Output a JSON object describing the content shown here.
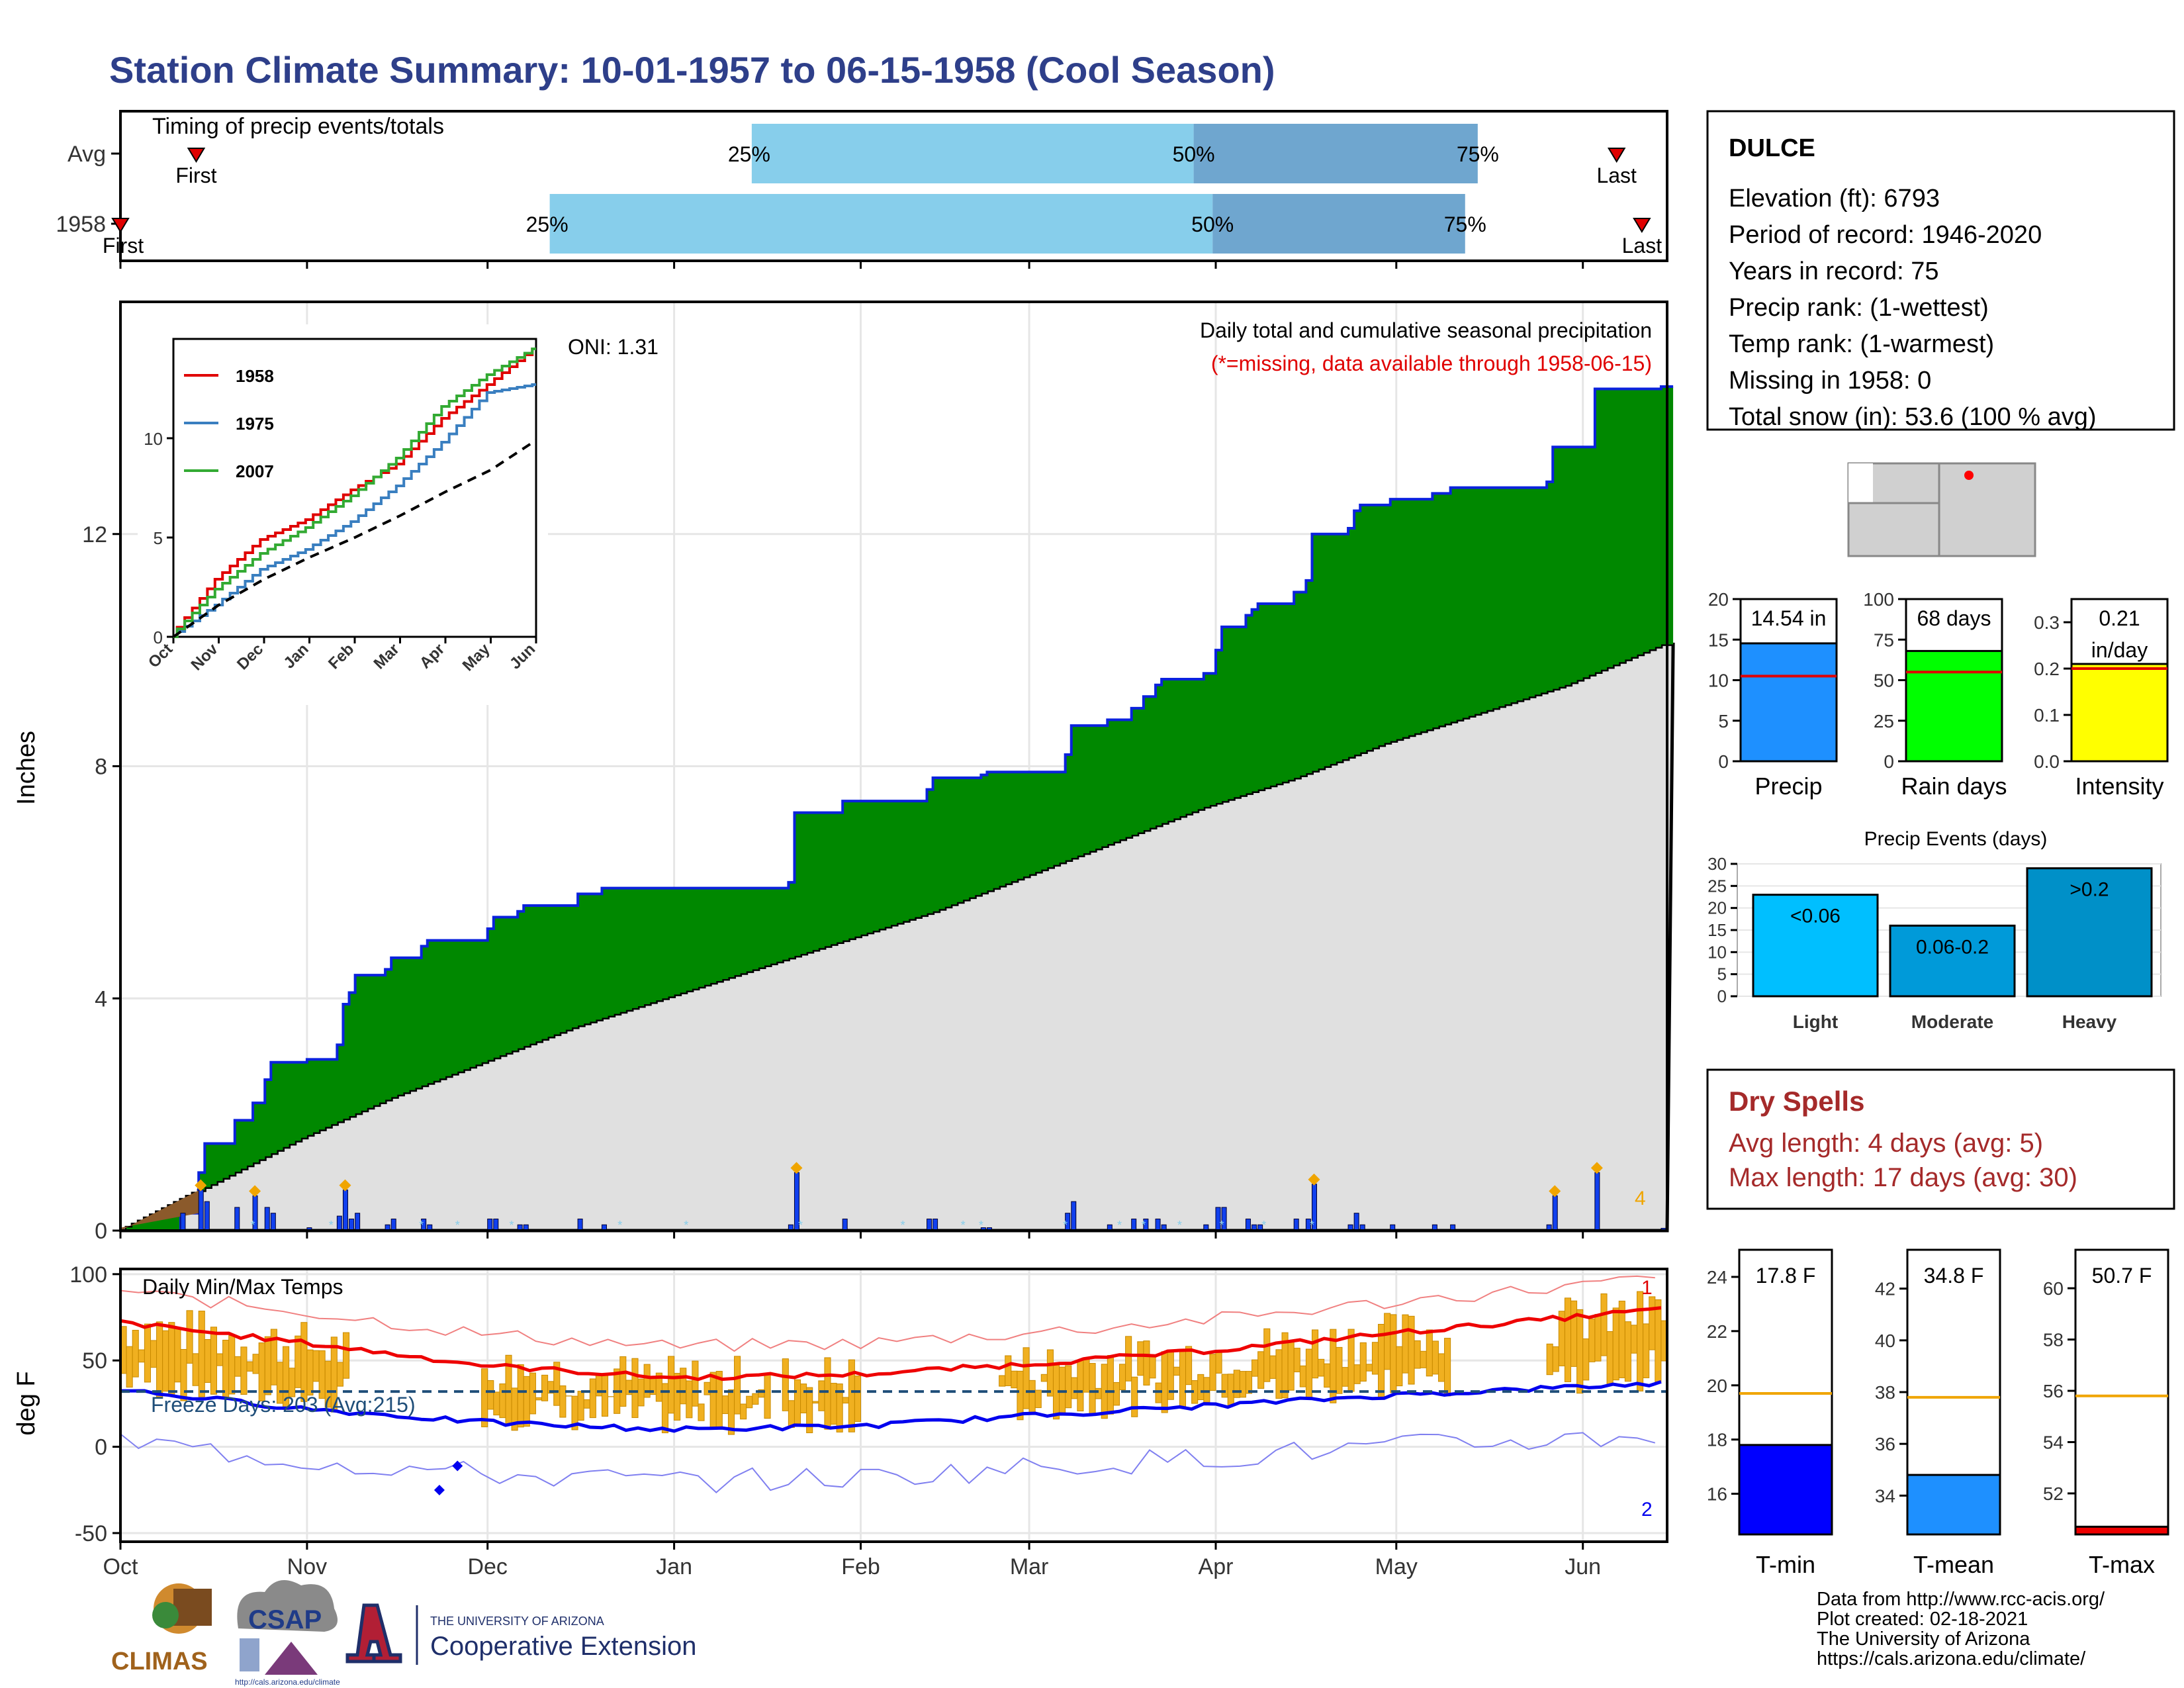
{
  "title": "Station Climate Summary: 10-01-1957 to 06-15-1958 (Cool Season)",
  "colors": {
    "title": "#2e3f8a",
    "green_fill": "#008800",
    "avg_fill": "#e0e0e0",
    "blue_line": "#0a22dd",
    "bar_blue": "#1140ee",
    "snow": "#87ceeb",
    "q_light": "#87ceeb",
    "q_dark": "#6fa6cf",
    "red": "#e00000",
    "orange": "#f0a500",
    "dry": "#a52a2a"
  },
  "timing": {
    "title": "Timing of precip events/totals",
    "rows": [
      {
        "label": "Avg",
        "first_label": "First",
        "last_label": "Last",
        "q25": "25%",
        "q50": "50%",
        "q75": "75%",
        "first_day": 12,
        "last_day": 237,
        "q25_day": 100,
        "q50_day": 170,
        "q75_day": 215
      },
      {
        "label": "1958",
        "first_label": "First",
        "last_label": "Last",
        "q25": "25%",
        "q50": "50%",
        "q75": "75%",
        "first_day": 0,
        "last_day": 241,
        "q25_day": 68,
        "q50_day": 173,
        "q75_day": 213
      }
    ]
  },
  "precip_panel": {
    "ylabel": "Inches",
    "yticks": [
      "0",
      "4",
      "8",
      "12"
    ],
    "oni": "ONI: 1.31",
    "caption": "Daily total and cumulative seasonal precipitation",
    "missing_note": "(*=missing, data available through 1958-06-15)",
    "extreme_count": "4"
  },
  "inset": {
    "yticks": [
      "0",
      "5",
      "10"
    ],
    "xticks": [
      "Oct",
      "Nov",
      "Dec",
      "Jan",
      "Feb",
      "Mar",
      "Apr",
      "May",
      "Jun"
    ],
    "legend": [
      {
        "name": "1958",
        "color": "#e00000"
      },
      {
        "name": "1975",
        "color": "#3a7fc0"
      },
      {
        "name": "2007",
        "color": "#33aa33"
      }
    ]
  },
  "temp_panel": {
    "ylabel": "deg F",
    "title": "Daily Min/Max Temps",
    "freeze_label": "Freeze Days: 203 (Avg:215)",
    "yticks": [
      "100",
      "50",
      "0",
      "-50"
    ],
    "record_high_count": "1",
    "record_low_count": "2"
  },
  "x_months": [
    "Oct",
    "Nov",
    "Dec",
    "Jan",
    "Feb",
    "Mar",
    "Apr",
    "May",
    "Jun"
  ],
  "station": {
    "name": "DULCE",
    "lines": [
      "Elevation (ft): 6793",
      "Period of record: 1946-2020",
      "Years in record: 75",
      "Precip rank:  (1-wettest)",
      "Temp rank:  (1-warmest)",
      "Missing in 1958: 0",
      "Total snow (in): 53.6 (100 % avg)"
    ]
  },
  "mini_bars": [
    {
      "label": "Precip",
      "value_label": "14.54 in",
      "value": 14.54,
      "avg": 10.5,
      "max": 20,
      "ticks": [
        "0",
        "5",
        "10",
        "15",
        "20"
      ],
      "color": "#1e90ff"
    },
    {
      "label": "Rain days",
      "value_label": "68 days",
      "value": 68,
      "avg": 55,
      "max": 100,
      "ticks": [
        "0",
        "25",
        "50",
        "75",
        "100"
      ],
      "color": "#00ff00"
    },
    {
      "label": "Intensity",
      "value_label": "0.21",
      "value_label2": "in/day",
      "value": 0.21,
      "avg": 0.2,
      "max": 0.35,
      "ticks": [
        "0.0",
        "0.1",
        "0.2",
        "0.3"
      ],
      "color": "#ffff00"
    }
  ],
  "events": {
    "title": "Precip Events (days)",
    "yticks": [
      "0",
      "5",
      "10",
      "15",
      "20",
      "25",
      "30"
    ],
    "bars": [
      {
        "label": "Light",
        "range": "<0.06",
        "value": 23,
        "color": "#00bfff"
      },
      {
        "label": "Moderate",
        "range": "0.06-0.2",
        "value": 16,
        "color": "#009ad9"
      },
      {
        "label": "Heavy",
        "range": ">0.2",
        "value": 29,
        "color": "#0090c8"
      }
    ]
  },
  "dry_spells": {
    "title": "Dry Spells",
    "avg": "Avg length: 4 days (avg: 5)",
    "max": "Max length: 17 days (avg: 30)"
  },
  "temp_bars": [
    {
      "label": "T-min",
      "value_label": "17.8 F",
      "value": 17.8,
      "avg": 19.7,
      "min": 14.5,
      "max": 25,
      "ticks": [
        "16",
        "18",
        "20",
        "22",
        "24"
      ],
      "color": "#0000ff"
    },
    {
      "label": "T-mean",
      "value_label": "34.8 F",
      "value": 34.8,
      "avg": 37.8,
      "min": 32.5,
      "max": 43.5,
      "ticks": [
        "34",
        "36",
        "38",
        "40",
        "42"
      ],
      "color": "#1e90ff"
    },
    {
      "label": "T-max",
      "value_label": "50.7 F",
      "value": 50.7,
      "avg": 55.8,
      "min": 50.4,
      "max": 61.5,
      "ticks": [
        "52",
        "54",
        "56",
        "58",
        "60"
      ],
      "color": "#ee0000"
    }
  ],
  "footer": [
    "Data from http://www.rcc-acis.org/",
    "Plot created: 02-18-2021",
    "The University of Arizona",
    "https://cals.arizona.edu/climate/"
  ],
  "logos": {
    "climas": "CLIMAS",
    "csap": "CSAP",
    "csap_url": "http://cals.arizona.edu/climate",
    "ua_line1": "THE UNIVERSITY OF ARIZONA",
    "ua_line2": "Cooperative Extension"
  },
  "chart_data": {
    "type": "area",
    "title": "Daily total and cumulative seasonal precipitation",
    "ylabel": "Inches",
    "xlabel": "",
    "ylim": [
      0,
      16
    ],
    "categories": [
      "Oct",
      "Nov",
      "Dec",
      "Jan",
      "Feb",
      "Mar",
      "Apr",
      "May",
      "Jun"
    ],
    "series": [
      {
        "name": "1958",
        "points": [
          [
            0,
            0.0
          ],
          [
            10,
            0.3
          ],
          [
            13,
            1.0
          ],
          [
            14,
            1.5
          ],
          [
            20,
            1.6
          ],
          [
            19,
            1.9
          ],
          [
            22,
            2.2
          ],
          [
            24,
            2.6
          ],
          [
            25,
            2.9
          ],
          [
            31,
            2.95
          ],
          [
            36,
            3.2
          ],
          [
            37,
            3.9
          ],
          [
            38,
            4.1
          ],
          [
            39,
            4.4
          ],
          [
            44,
            4.5
          ],
          [
            45,
            4.7
          ],
          [
            50,
            4.9
          ],
          [
            51,
            5.0
          ],
          [
            58,
            5.0
          ],
          [
            61,
            5.2
          ],
          [
            62,
            5.4
          ],
          [
            66,
            5.5
          ],
          [
            67,
            5.6
          ],
          [
            76,
            5.8
          ],
          [
            80,
            5.9
          ],
          [
            107,
            5.9
          ],
          [
            111,
            6.0
          ],
          [
            112,
            7.2
          ],
          [
            120,
            7.4
          ],
          [
            134,
            7.6
          ],
          [
            135,
            7.8
          ],
          [
            143,
            7.85
          ],
          [
            144,
            7.9
          ],
          [
            157,
            8.2
          ],
          [
            158,
            8.7
          ],
          [
            164,
            8.8
          ],
          [
            168,
            9.0
          ],
          [
            170,
            9.2
          ],
          [
            172,
            9.4
          ],
          [
            173,
            9.5
          ],
          [
            180,
            9.6
          ],
          [
            182,
            10.0
          ],
          [
            183,
            10.4
          ],
          [
            187,
            10.6
          ],
          [
            188,
            10.7
          ],
          [
            189,
            10.8
          ],
          [
            195,
            11.0
          ],
          [
            197,
            11.2
          ],
          [
            198,
            12.0
          ],
          [
            204,
            12.1
          ],
          [
            205,
            12.4
          ],
          [
            206,
            12.5
          ],
          [
            211,
            12.6
          ],
          [
            218,
            12.7
          ],
          [
            221,
            12.8
          ],
          [
            237,
            12.9
          ],
          [
            238,
            13.5
          ],
          [
            245,
            14.5
          ],
          [
            256,
            14.54
          ]
        ]
      },
      {
        "name": "avg",
        "points": [
          [
            0,
            0
          ],
          [
            15,
            0.8
          ],
          [
            30,
            1.6
          ],
          [
            45,
            2.3
          ],
          [
            60,
            2.9
          ],
          [
            75,
            3.5
          ],
          [
            90,
            4.0
          ],
          [
            105,
            4.5
          ],
          [
            120,
            5.0
          ],
          [
            135,
            5.5
          ],
          [
            150,
            6.1
          ],
          [
            165,
            6.7
          ],
          [
            180,
            7.3
          ],
          [
            195,
            7.8
          ],
          [
            210,
            8.4
          ],
          [
            225,
            8.9
          ],
          [
            240,
            9.4
          ],
          [
            256,
            10.1
          ]
        ]
      }
    ],
    "inset": {
      "type": "line",
      "ylim": [
        0,
        15
      ],
      "series": [
        {
          "name": "1958",
          "values": [
            0,
            2.9,
            4.9,
            5.9,
            7.4,
            8.7,
            11.0,
            12.7,
            14.5
          ]
        },
        {
          "name": "1975",
          "values": [
            0,
            1.6,
            3.4,
            4.4,
            5.8,
            7.6,
            9.8,
            12.3,
            12.7
          ]
        },
        {
          "name": "2007",
          "values": [
            0,
            2.4,
            4.2,
            5.5,
            7.1,
            9.0,
            11.6,
            13.2,
            14.5
          ]
        },
        {
          "name": "avg",
          "values": [
            0,
            1.6,
            2.9,
            4.0,
            5.0,
            6.1,
            7.3,
            8.4,
            9.9
          ]
        }
      ]
    },
    "temps": {
      "type": "line",
      "ylim": [
        -50,
        100
      ],
      "avg_max_f": [
        72,
        60,
        47,
        40,
        42,
        48,
        56,
        66,
        80
      ],
      "avg_min_f": [
        33,
        22,
        14,
        10,
        12,
        18,
        24,
        30,
        37
      ],
      "freeze_line_f": 32
    }
  }
}
